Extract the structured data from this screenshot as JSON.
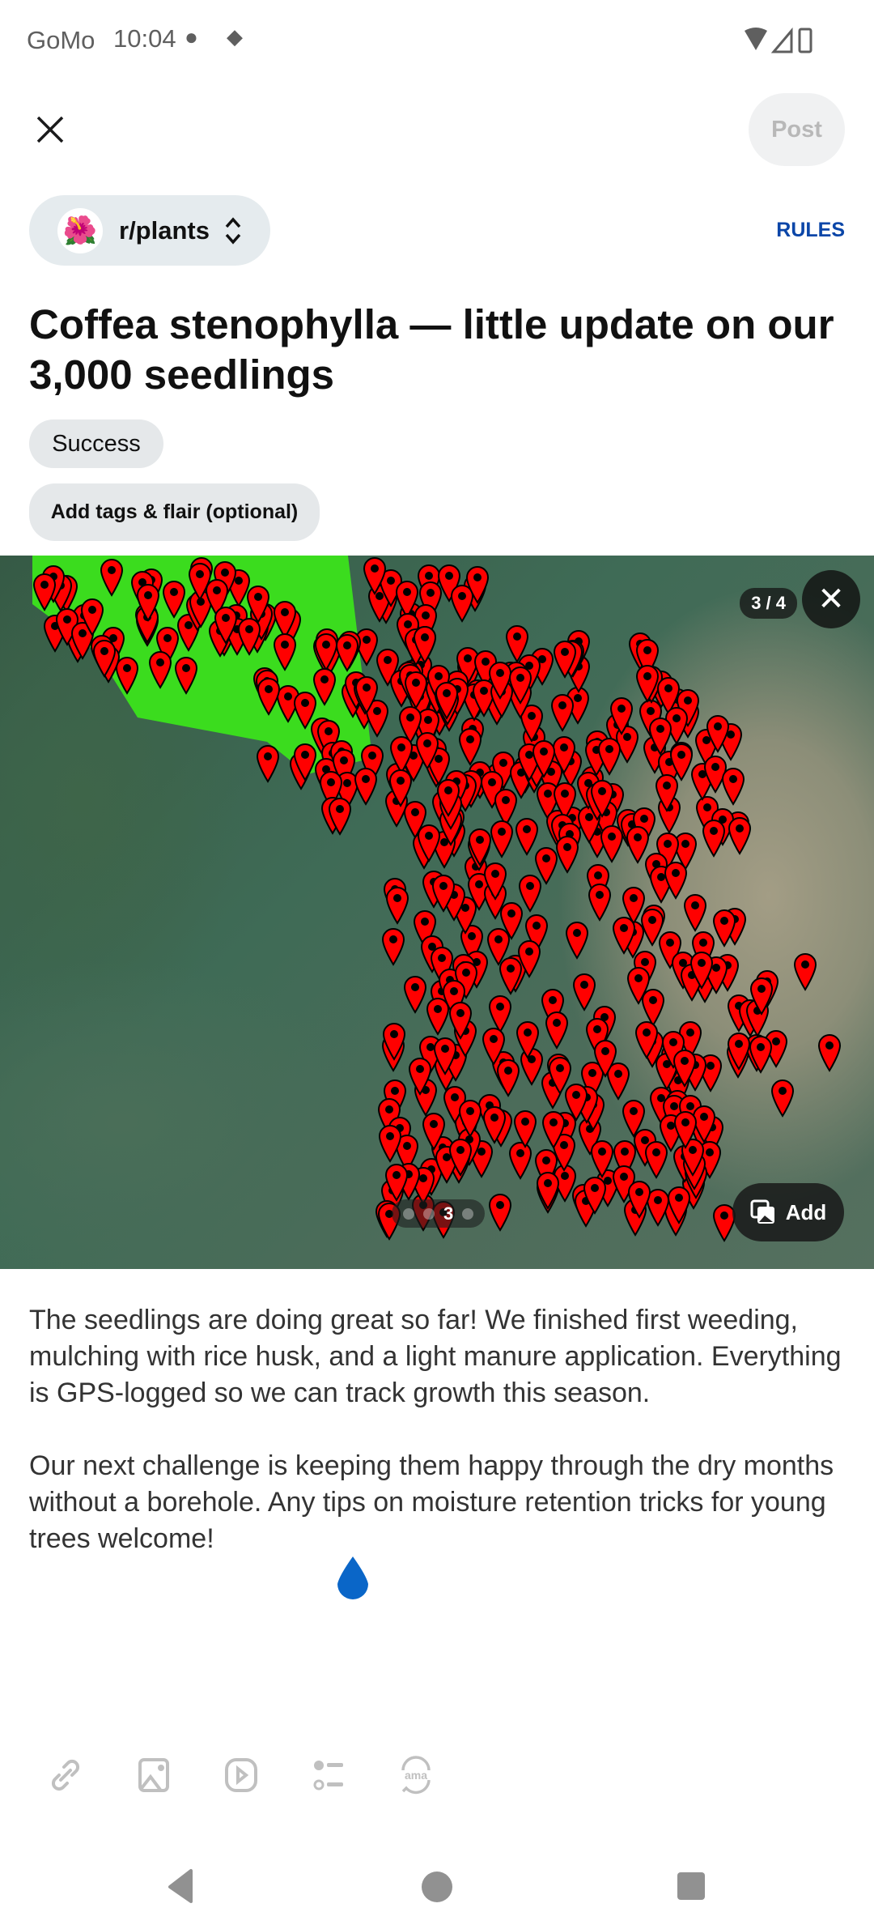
{
  "status_bar": {
    "carrier": "GoMo",
    "time": "10:04"
  },
  "header": {
    "close_icon": "close-icon",
    "post_label": "Post"
  },
  "community": {
    "name": "r/plants",
    "rules_label": "RULES"
  },
  "post": {
    "title": "Coffea stenophylla — little update on our 3,000 seedlings",
    "flair": "Success",
    "tags_button": "Add tags & flair (optional)",
    "body_paragraphs": [
      "The seedlings are doing great so far! We finished first weeding, mulching with rice husk, and a light manure application. Everything is GPS-logged so we can track growth this season.",
      "Our next challenge is keeping them happy through the dry months without a borehole. Any tips on moisture retention tricks for young trees welcome!"
    ]
  },
  "media": {
    "counter": "3 / 4",
    "current_page": "3",
    "add_label": "Add",
    "pin_color": "#ff0000"
  },
  "toolbar": {
    "icons": [
      "link-icon",
      "image-icon",
      "video-icon",
      "poll-icon",
      "ama-icon"
    ]
  },
  "colors": {
    "accent": "#0b46a8",
    "chip_bg": "#e5ebee"
  }
}
